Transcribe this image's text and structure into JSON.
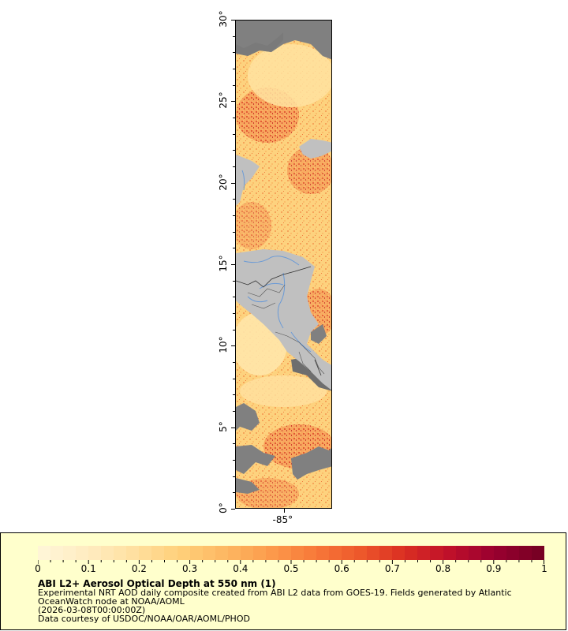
{
  "map": {
    "y_ticks": [
      {
        "label": "30°",
        "value": 30
      },
      {
        "label": "25°",
        "value": 25
      },
      {
        "label": "20°",
        "value": 20
      },
      {
        "label": "15°",
        "value": 15
      },
      {
        "label": "10°",
        "value": 10
      },
      {
        "label": "5°",
        "value": 5
      },
      {
        "label": "0°",
        "value": 0
      }
    ],
    "x_ticks": [
      {
        "label": "-85°",
        "value": -85
      }
    ],
    "lat_range": [
      0,
      30
    ],
    "colors": {
      "land": "#c0c0c0",
      "missing": "#808080",
      "rivers": "#6a9ad6",
      "borders": "#333333"
    }
  },
  "legend": {
    "title": "ABI L2+ Aerosol Optical Depth at 550 nm (1)",
    "description_line1": "Experimental NRT AOD daily composite created from ABI L2 data from GOES-19. Fields generated by Atlantic",
    "description_line2": "OceanWatch node at NOAA/AOML",
    "timestamp": "(2026-03-08T00:00:00Z)",
    "credit": "Data courtesy of USDOC/NOAA/OAR/AOML/PHOD",
    "colorbar_ticks": [
      "0",
      "0.1",
      "0.2",
      "0.3",
      "0.4",
      "0.5",
      "0.6",
      "0.7",
      "0.8",
      "0.9",
      "1"
    ],
    "colorbar_range": [
      0,
      1
    ],
    "colors": [
      "#fff5d6",
      "#ffecc0",
      "#ffe0a0",
      "#ffd07a",
      "#fdb863",
      "#fc9c4c",
      "#f87a3a",
      "#ee5a2c",
      "#db3022",
      "#c0102a",
      "#9a0030",
      "#780024"
    ]
  }
}
